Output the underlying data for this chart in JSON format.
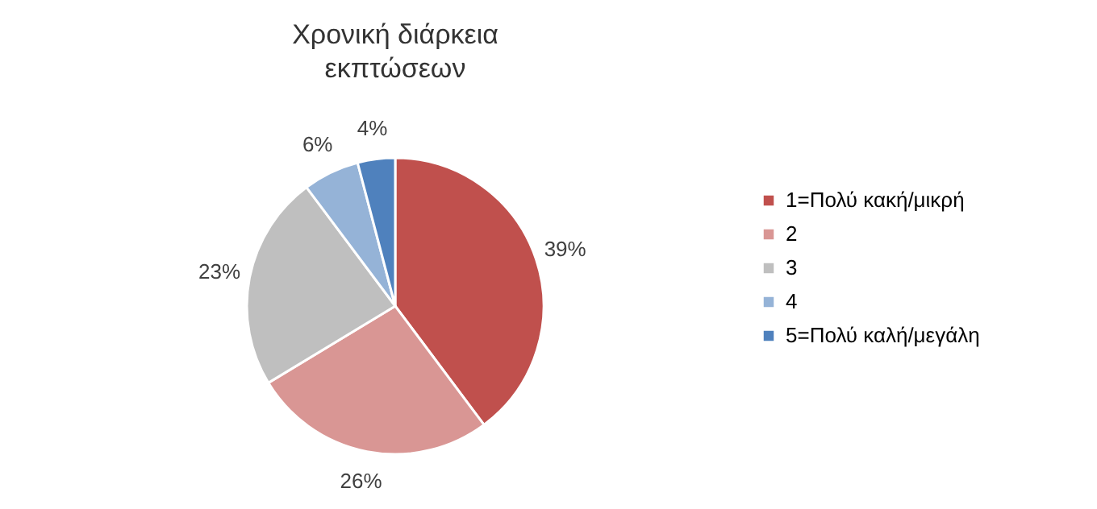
{
  "chart_data": {
    "type": "pie",
    "title": "Χρονική διάρκεια εκπτώσεων",
    "categories": [
      "1=Πολύ κακή/μικρή",
      "2",
      "3",
      "4",
      "5=Πολύ καλή/μεγάλη"
    ],
    "values": [
      39,
      26,
      23,
      6,
      4
    ],
    "colors": [
      "#c0504d",
      "#d99694",
      "#bfbfbf",
      "#95b3d7",
      "#4f81bd"
    ],
    "value_labels": [
      "39%",
      "26%",
      "23%",
      "6%",
      "4%"
    ],
    "legend": "right"
  }
}
